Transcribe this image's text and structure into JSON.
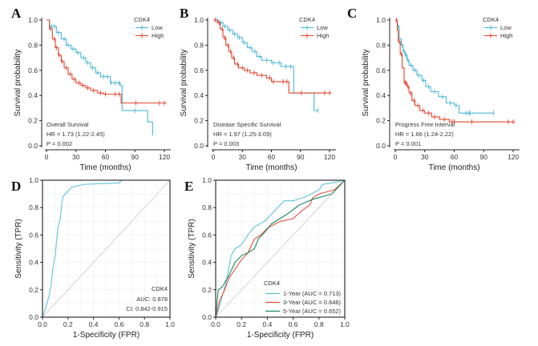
{
  "colors": {
    "low": "#4cb6d6",
    "high": "#e0452e",
    "one_year": "#5ec4d8",
    "three_year": "#e2523e",
    "five_year": "#1c8a68",
    "diagonal": "#cfcfcf",
    "grid": "#eeeeee"
  },
  "chart_data": [
    {
      "id": "A",
      "type": "line",
      "subtype": "kaplan-meier",
      "panel_label": "A",
      "xlabel": "Time (months)",
      "ylabel": "Survival probability",
      "xlim": [
        0,
        120
      ],
      "ylim": [
        0,
        1
      ],
      "xticks": [
        "0",
        "30",
        "60",
        "90",
        "120"
      ],
      "yticks": [
        "0.0",
        "0.2",
        "0.4",
        "0.6",
        "0.8",
        "1.0"
      ],
      "legend": {
        "title": "CDK4",
        "placement": "top-right"
      },
      "annotation": [
        "Overall Survival",
        "HR = 1.73 (1.22-2.45)",
        "P = 0.002"
      ],
      "series": [
        {
          "name": "Low",
          "color_key": "low",
          "points": [
            [
              0,
              1
            ],
            [
              3,
              0.95
            ],
            [
              10,
              0.9
            ],
            [
              15,
              0.85
            ],
            [
              20,
              0.8
            ],
            [
              25,
              0.77
            ],
            [
              30,
              0.74
            ],
            [
              35,
              0.7
            ],
            [
              40,
              0.66
            ],
            [
              45,
              0.62
            ],
            [
              50,
              0.58
            ],
            [
              55,
              0.55
            ],
            [
              65,
              0.5
            ],
            [
              75,
              0.48
            ],
            [
              77,
              0.28
            ],
            [
              90,
              0.28
            ],
            [
              103,
              0.19
            ],
            [
              108,
              0.1
            ]
          ],
          "censor": [
            5,
            8,
            12,
            18,
            22,
            27,
            32,
            38,
            42,
            47,
            52,
            58,
            62,
            66,
            70,
            74,
            90,
            108
          ]
        },
        {
          "name": "High",
          "color_key": "high",
          "points": [
            [
              0,
              1
            ],
            [
              3,
              0.93
            ],
            [
              6,
              0.85
            ],
            [
              9,
              0.78
            ],
            [
              12,
              0.72
            ],
            [
              15,
              0.67
            ],
            [
              18,
              0.62
            ],
            [
              22,
              0.57
            ],
            [
              26,
              0.53
            ],
            [
              30,
              0.5
            ],
            [
              35,
              0.48
            ],
            [
              40,
              0.46
            ],
            [
              45,
              0.44
            ],
            [
              52,
              0.42
            ],
            [
              58,
              0.41
            ],
            [
              72,
              0.41
            ],
            [
              76,
              0.34
            ],
            [
              122,
              0.34
            ]
          ],
          "censor": [
            4,
            8,
            10,
            13,
            16,
            20,
            24,
            28,
            33,
            37,
            42,
            48,
            55,
            60,
            70,
            74,
            91,
            115,
            120
          ]
        }
      ]
    },
    {
      "id": "B",
      "type": "line",
      "subtype": "kaplan-meier",
      "panel_label": "B",
      "xlabel": "Time (months)",
      "ylabel": "Survival probability",
      "xlim": [
        0,
        120
      ],
      "ylim": [
        0,
        1
      ],
      "xticks": [
        "0",
        "30",
        "60",
        "90",
        "120"
      ],
      "yticks": [
        "0.0",
        "0.2",
        "0.4",
        "0.6",
        "0.8",
        "1.0"
      ],
      "legend": {
        "title": "CDK4",
        "placement": "top-right"
      },
      "annotation": [
        "Disease Specific Survival",
        "HR = 1.97 (1.25-3.09)",
        "P = 0.003"
      ],
      "series": [
        {
          "name": "Low",
          "color_key": "low",
          "points": [
            [
              0,
              1
            ],
            [
              5,
              0.98
            ],
            [
              10,
              0.95
            ],
            [
              15,
              0.92
            ],
            [
              20,
              0.89
            ],
            [
              25,
              0.86
            ],
            [
              30,
              0.82
            ],
            [
              35,
              0.78
            ],
            [
              40,
              0.75
            ],
            [
              45,
              0.71
            ],
            [
              50,
              0.68
            ],
            [
              60,
              0.66
            ],
            [
              70,
              0.63
            ],
            [
              82,
              0.63
            ],
            [
              83,
              0.42
            ],
            [
              103,
              0.42
            ],
            [
              104,
              0.28
            ],
            [
              108,
              0.28
            ]
          ],
          "censor": [
            4,
            8,
            12,
            17,
            22,
            27,
            32,
            38,
            43,
            48,
            55,
            62,
            68,
            75,
            80,
            108
          ]
        },
        {
          "name": "High",
          "color_key": "high",
          "points": [
            [
              0,
              1
            ],
            [
              4,
              0.98
            ],
            [
              7,
              0.93
            ],
            [
              10,
              0.86
            ],
            [
              13,
              0.8
            ],
            [
              16,
              0.75
            ],
            [
              19,
              0.7
            ],
            [
              22,
              0.65
            ],
            [
              26,
              0.62
            ],
            [
              32,
              0.6
            ],
            [
              38,
              0.58
            ],
            [
              45,
              0.56
            ],
            [
              55,
              0.54
            ],
            [
              60,
              0.51
            ],
            [
              75,
              0.51
            ],
            [
              78,
              0.42
            ],
            [
              122,
              0.42
            ]
          ],
          "censor": [
            2,
            6,
            9,
            12,
            15,
            18,
            21,
            25,
            30,
            35,
            42,
            50,
            58,
            62,
            72,
            76,
            91,
            115,
            120
          ]
        }
      ]
    },
    {
      "id": "C",
      "type": "line",
      "subtype": "kaplan-meier",
      "panel_label": "C",
      "xlabel": "Time (months)",
      "ylabel": "Survival probability",
      "xlim": [
        0,
        120
      ],
      "ylim": [
        0,
        1
      ],
      "xticks": [
        "0",
        "30",
        "60",
        "90",
        "120"
      ],
      "yticks": [
        "0.0",
        "0.2",
        "0.4",
        "0.6",
        "0.8",
        "1.0"
      ],
      "legend": {
        "title": "CDK4",
        "placement": "top-right"
      },
      "annotation": [
        "Progress Free Interval",
        "HR = 1.66 (1.24-2.22)",
        "P = 0.001"
      ],
      "series": [
        {
          "name": "Low",
          "color_key": "low",
          "points": [
            [
              0,
              1
            ],
            [
              2,
              0.95
            ],
            [
              4,
              0.85
            ],
            [
              6,
              0.8
            ],
            [
              8,
              0.75
            ],
            [
              10,
              0.72
            ],
            [
              12,
              0.68
            ],
            [
              14,
              0.64
            ],
            [
              18,
              0.6
            ],
            [
              22,
              0.56
            ],
            [
              27,
              0.52
            ],
            [
              31,
              0.47
            ],
            [
              36,
              0.43
            ],
            [
              44,
              0.39
            ],
            [
              52,
              0.34
            ],
            [
              60,
              0.32
            ],
            [
              65,
              0.26
            ],
            [
              100,
              0.26
            ]
          ],
          "censor": [
            3,
            7,
            9,
            11,
            13,
            16,
            20,
            24,
            29,
            34,
            40,
            48,
            56,
            62,
            72,
            75,
            76,
            100
          ]
        },
        {
          "name": "High",
          "color_key": "high",
          "points": [
            [
              0,
              1
            ],
            [
              2,
              0.92
            ],
            [
              3,
              0.83
            ],
            [
              5,
              0.73
            ],
            [
              7,
              0.62
            ],
            [
              9,
              0.5
            ],
            [
              12,
              0.47
            ],
            [
              14,
              0.42
            ],
            [
              17,
              0.36
            ],
            [
              20,
              0.32
            ],
            [
              25,
              0.28
            ],
            [
              30,
              0.26
            ],
            [
              37,
              0.23
            ],
            [
              45,
              0.21
            ],
            [
              55,
              0.19
            ],
            [
              122,
              0.19
            ]
          ],
          "censor": [
            1,
            4,
            6,
            10,
            11,
            13,
            16,
            19,
            23,
            28,
            34,
            40,
            50,
            58,
            60,
            78,
            115,
            120
          ]
        }
      ]
    },
    {
      "id": "D",
      "type": "line",
      "subtype": "roc",
      "panel_label": "D",
      "xlabel": "1-Specificity (FPR)",
      "ylabel": "Sensitivity (TPR)",
      "xlim": [
        0,
        1
      ],
      "ylim": [
        0,
        1
      ],
      "grid": true,
      "xticks": [
        "0.0",
        "0.2",
        "0.4",
        "0.6",
        "0.8",
        "1.0"
      ],
      "yticks": [
        "0.0",
        "0.2",
        "0.4",
        "0.6",
        "0.8",
        "1.0"
      ],
      "legend": {
        "title": "CDK4",
        "placement": "bottom-right",
        "entries": [
          "AUC: 0.878",
          "CI: 0.842-0.915"
        ]
      },
      "series": [
        {
          "color_key": "one_year",
          "points": [
            [
              0,
              0
            ],
            [
              0.02,
              0.05
            ],
            [
              0.05,
              0.15
            ],
            [
              0.07,
              0.25
            ],
            [
              0.08,
              0.35
            ],
            [
              0.1,
              0.45
            ],
            [
              0.11,
              0.55
            ],
            [
              0.12,
              0.65
            ],
            [
              0.14,
              0.72
            ],
            [
              0.15,
              0.82
            ],
            [
              0.16,
              0.88
            ],
            [
              0.18,
              0.9
            ],
            [
              0.2,
              0.92
            ],
            [
              0.23,
              0.95
            ],
            [
              0.33,
              0.97
            ],
            [
              0.6,
              0.98
            ],
            [
              0.62,
              1
            ],
            [
              1,
              1
            ]
          ]
        }
      ]
    },
    {
      "id": "E",
      "type": "line",
      "subtype": "roc",
      "panel_label": "E",
      "xlabel": "1-Specificity (FPR)",
      "ylabel": "Sensitivity (TPR)",
      "xlim": [
        0,
        1
      ],
      "ylim": [
        0,
        1
      ],
      "grid": true,
      "xticks": [
        "0.0",
        "0.2",
        "0.4",
        "0.6",
        "0.8",
        "1.0"
      ],
      "yticks": [
        "0.0",
        "0.2",
        "0.4",
        "0.6",
        "0.8",
        "1.0"
      ],
      "legend": {
        "title": "CDK4",
        "placement": "bottom-right"
      },
      "series": [
        {
          "name": "1-Year (AUC = 0.713)",
          "color_key": "one_year",
          "points": [
            [
              0,
              0
            ],
            [
              0.02,
              0.05
            ],
            [
              0.05,
              0.15
            ],
            [
              0.08,
              0.25
            ],
            [
              0.1,
              0.35
            ],
            [
              0.12,
              0.45
            ],
            [
              0.15,
              0.5
            ],
            [
              0.2,
              0.53
            ],
            [
              0.25,
              0.6
            ],
            [
              0.3,
              0.66
            ],
            [
              0.38,
              0.7
            ],
            [
              0.45,
              0.77
            ],
            [
              0.5,
              0.82
            ],
            [
              0.53,
              0.85
            ],
            [
              0.6,
              0.85
            ],
            [
              0.7,
              0.88
            ],
            [
              0.8,
              0.93
            ],
            [
              0.83,
              0.97
            ],
            [
              0.9,
              0.98
            ],
            [
              1,
              1
            ]
          ]
        },
        {
          "name": "3-Year (AUC = 0.646)",
          "color_key": "three_year",
          "points": [
            [
              0,
              0
            ],
            [
              0.03,
              0.12
            ],
            [
              0.07,
              0.2
            ],
            [
              0.1,
              0.28
            ],
            [
              0.15,
              0.35
            ],
            [
              0.2,
              0.42
            ],
            [
              0.25,
              0.47
            ],
            [
              0.3,
              0.57
            ],
            [
              0.35,
              0.6
            ],
            [
              0.4,
              0.65
            ],
            [
              0.5,
              0.7
            ],
            [
              0.6,
              0.72
            ],
            [
              0.67,
              0.78
            ],
            [
              0.73,
              0.82
            ],
            [
              0.75,
              0.87
            ],
            [
              0.8,
              0.9
            ],
            [
              0.92,
              0.93
            ],
            [
              1,
              1
            ]
          ]
        },
        {
          "name": "5-Year (AUC = 0.652)",
          "color_key": "five_year",
          "points": [
            [
              0,
              0
            ],
            [
              0.02,
              0.2
            ],
            [
              0.05,
              0.22
            ],
            [
              0.1,
              0.3
            ],
            [
              0.15,
              0.4
            ],
            [
              0.2,
              0.45
            ],
            [
              0.25,
              0.47
            ],
            [
              0.3,
              0.5
            ],
            [
              0.33,
              0.57
            ],
            [
              0.38,
              0.62
            ],
            [
              0.43,
              0.68
            ],
            [
              0.55,
              0.75
            ],
            [
              0.65,
              0.82
            ],
            [
              0.75,
              0.86
            ],
            [
              0.9,
              0.9
            ],
            [
              1,
              1
            ]
          ]
        }
      ]
    }
  ]
}
